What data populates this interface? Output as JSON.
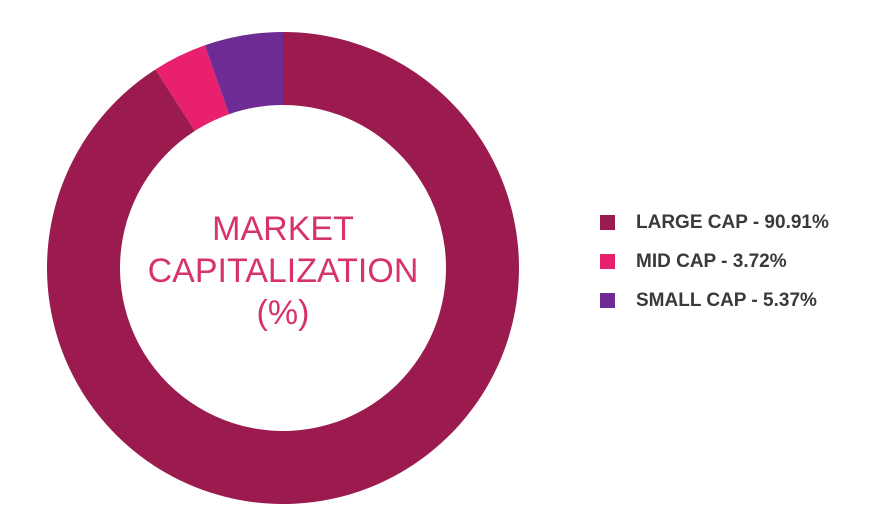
{
  "chart_data": {
    "type": "pie",
    "title_lines": [
      "MARKET",
      "CAPITALIZATION",
      "(%)"
    ],
    "slices": [
      {
        "label": "LARGE CAP - 90.91%",
        "name": "LARGE CAP",
        "value": 90.91,
        "color": "#9b1b4f"
      },
      {
        "label": "MID CAP - 3.72%",
        "name": "MID CAP",
        "value": 3.72,
        "color": "#e8206d"
      },
      {
        "label": "SMALL CAP - 5.37%",
        "name": "SMALL CAP",
        "value": 5.37,
        "color": "#6f2b94"
      }
    ],
    "slice_order_clockwise_from_top": [
      "LARGE CAP",
      "MID CAP",
      "SMALL CAP"
    ],
    "legend_position": "right",
    "center_text_color": "#d6336c"
  }
}
